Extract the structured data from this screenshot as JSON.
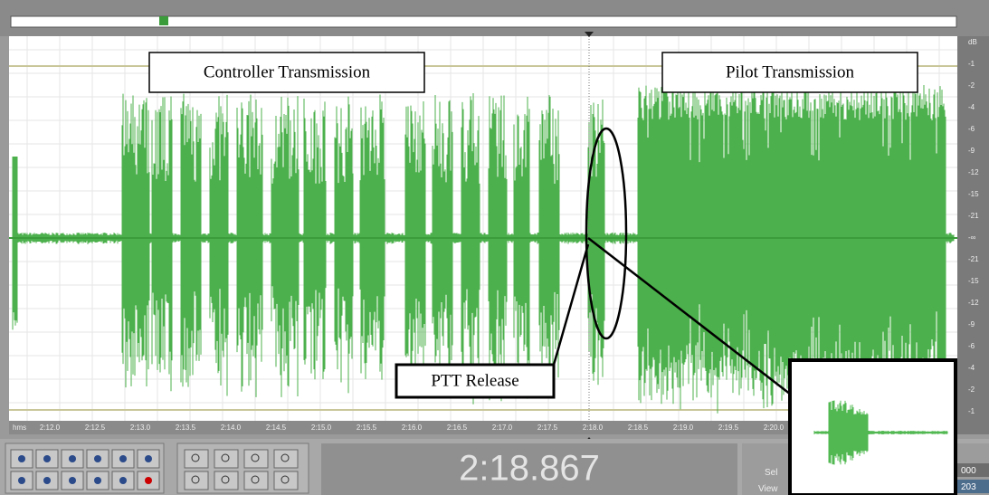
{
  "annotations": {
    "controller": "Controller Transmission",
    "pilot": "Pilot Transmission",
    "ptt": "PTT Release"
  },
  "timeline": {
    "unit": "hms",
    "labels": [
      "2:12.0",
      "2:12.5",
      "2:13.0",
      "2:13.5",
      "2:14.0",
      "2:14.5",
      "2:15.0",
      "2:15.5",
      "2:16.0",
      "2:16.5",
      "2:17.0",
      "2:17.5",
      "2:18.0",
      "2:18.5",
      "2:19.0",
      "2:19.5",
      "2:20.0"
    ]
  },
  "db_scale": [
    "dB",
    "-1",
    "-2",
    "-4",
    "-6",
    "-9",
    "-12",
    "-15",
    "-21",
    "-∞",
    "-21",
    "-15",
    "-12",
    "-9",
    "-6",
    "-4",
    "-2",
    "-1"
  ],
  "time_display": "2:18.867",
  "selection": {
    "sel_label": "Sel",
    "view_label": "View",
    "begin": "000",
    "end": "203"
  }
}
